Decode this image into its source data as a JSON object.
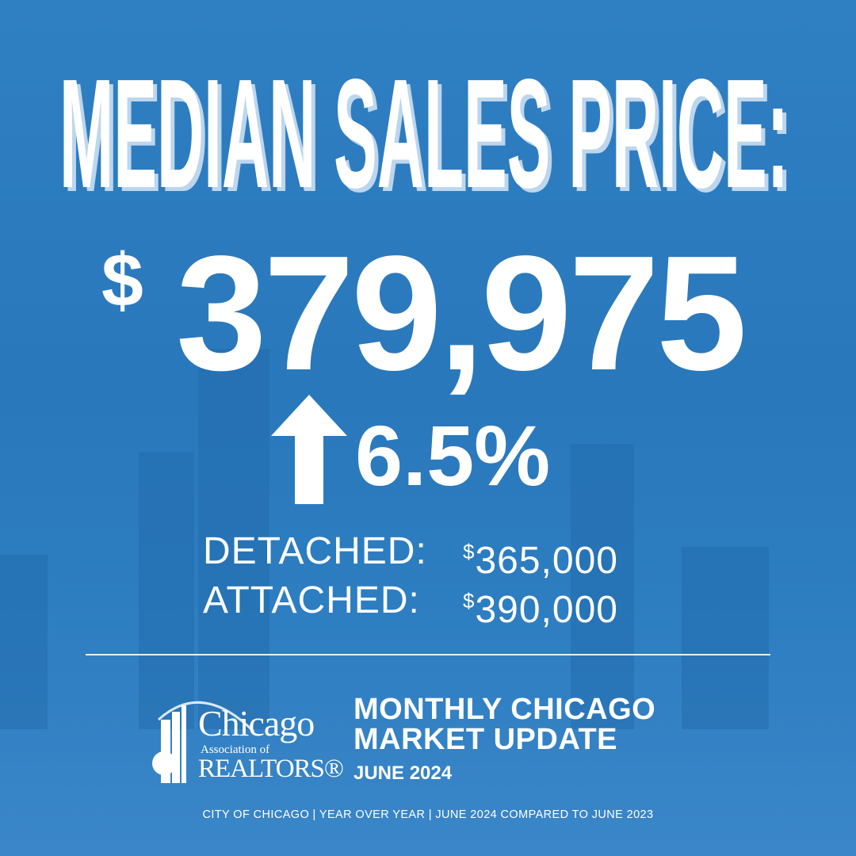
{
  "headline": "MEDIAN SALES PRICE:",
  "price": {
    "currency_symbol": "$",
    "value": "379,975"
  },
  "change": {
    "direction": "up",
    "icon": "arrow-up-icon",
    "value": "6.5%"
  },
  "breakdown": [
    {
      "label": "DETACHED:",
      "currency_symbol": "$",
      "value": "365,000"
    },
    {
      "label": "ATTACHED:",
      "currency_symbol": "$",
      "value": "390,000"
    }
  ],
  "logo": {
    "line1": "Chicago",
    "line2": "Association of",
    "line3": "REALTORS®"
  },
  "update": {
    "title_line1": "MONTHLY CHICAGO",
    "title_line2": "MARKET UPDATE",
    "month": "JUNE 2024"
  },
  "footer": "CITY OF CHICAGO | YEAR OVER YEAR | JUNE 2024 COMPARED TO JUNE 2023",
  "colors": {
    "background": "#2b7cc0",
    "text": "#ffffff",
    "headline_shadow": "#bcd6ee"
  }
}
